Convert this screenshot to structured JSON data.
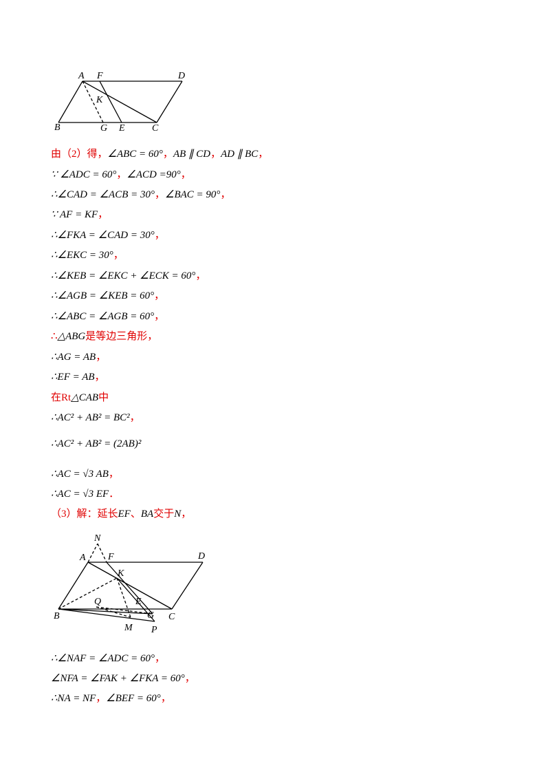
{
  "figure1": {
    "labels": {
      "A": "A",
      "F": "F",
      "D": "D",
      "K": "K",
      "B": "B",
      "G": "G",
      "E": "E",
      "C": "C"
    }
  },
  "lines": [
    [
      "由（2）得，",
      "∠ABC = 60°",
      "，",
      "AB ∥ CD",
      "，",
      "AD ∥ BC",
      "，"
    ],
    [
      "∵ ∠ADC = 60°",
      "，",
      "∠ACD =90°",
      "，"
    ],
    [
      "∴∠CAD = ∠ACB = 30°",
      "，",
      "∠BAC = 90°",
      "，"
    ],
    [
      "∵ AF = KF",
      "，"
    ],
    [
      "∴∠FKA = ∠CAD = 30°",
      "，"
    ],
    [
      "∴∠EKC = 30°",
      "，"
    ],
    [
      "∴∠KEB = ∠EKC + ∠ECK = 60°",
      "，"
    ],
    [
      "∴∠AGB = ∠KEB = 60°",
      "，"
    ],
    [
      "∴∠ABC = ∠AGB = 60°",
      "，"
    ],
    [
      "∴",
      "△ABG",
      "是等边三角形，"
    ],
    [
      "∴AG = AB",
      "，"
    ],
    [
      "∴EF = AB",
      "，"
    ],
    [
      "在Rt",
      "△CAB",
      "中"
    ],
    [
      "∴AC² + AB² = BC²",
      "，"
    ],
    [
      "∴AC² + AB² = (2AB)²"
    ],
    [
      "∴AC = √3 AB",
      "，"
    ],
    [
      "∴AC = √3 EF",
      "．"
    ],
    [
      "（3）解：延长",
      "EF",
      "、",
      "BA",
      "交于",
      "N",
      "，"
    ]
  ],
  "figure2": {
    "labels": {
      "N": "N",
      "A": "A",
      "F": "F",
      "D": "D",
      "K": "K",
      "Q": "Q",
      "E": "E",
      "G": "G",
      "C": "C",
      "B": "B",
      "M": "M",
      "P": "P"
    }
  },
  "lines2": [
    [
      "∴∠NAF = ∠ADC = 60°",
      "，"
    ],
    [
      "∠NFA = ∠FAK + ∠FKA = 60°",
      "，"
    ],
    [
      "∴NA = NF",
      "，",
      "∠BEF = 60°",
      "，"
    ]
  ]
}
